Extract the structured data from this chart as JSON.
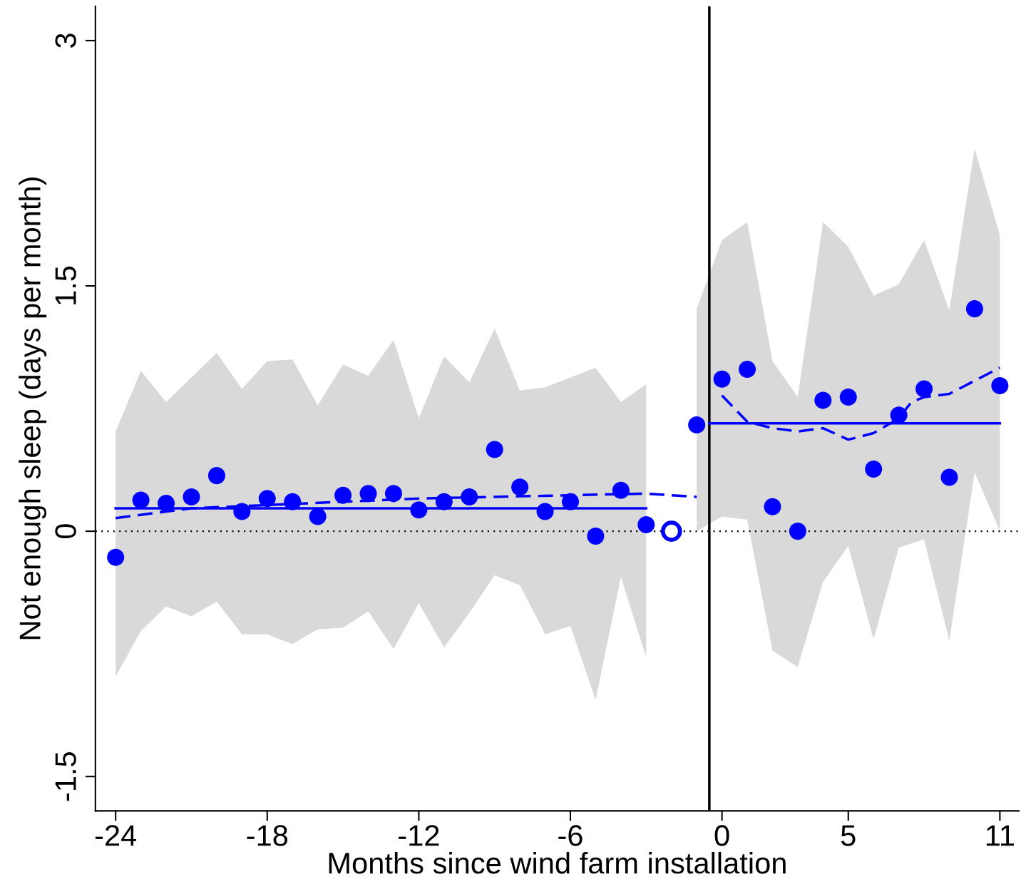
{
  "chart_data": {
    "type": "scatter",
    "xlabel": "Months since wind farm installation",
    "ylabel": "Not enough sleep (days per month)",
    "xlim": [
      -24.8,
      11.75
    ],
    "ylim": [
      -1.71,
      3.21
    ],
    "xticks": [
      -24,
      -18,
      -12,
      -6,
      0,
      5,
      11
    ],
    "yticks": [
      -1.5,
      0,
      1.5,
      3
    ],
    "grid": false,
    "series": [
      {
        "color": "#0000ff",
        "marker": "circle",
        "x": [
          -24,
          -23,
          -22,
          -21,
          -20,
          -19,
          -18,
          -17,
          -16,
          -15,
          -14,
          -13,
          -12,
          -11,
          -10,
          -9,
          -8,
          -7,
          -6,
          -5,
          -4,
          -3
        ],
        "values": [
          -0.16,
          0.19,
          0.17,
          0.21,
          0.34,
          0.12,
          0.2,
          0.18,
          0.09,
          0.22,
          0.23,
          0.23,
          0.13,
          0.18,
          0.21,
          0.5,
          0.27,
          0.12,
          0.18,
          -0.03,
          0.25,
          0.04
        ],
        "upper": [
          0.61,
          0.98,
          0.79,
          0.94,
          1.09,
          0.87,
          1.04,
          1.05,
          0.77,
          1.02,
          0.95,
          1.17,
          0.69,
          1.07,
          0.91,
          1.24,
          0.86,
          0.88,
          0.94,
          1.0,
          0.79,
          0.9
        ],
        "lower": [
          -0.89,
          -0.61,
          -0.46,
          -0.52,
          -0.43,
          -0.63,
          -0.63,
          -0.69,
          -0.6,
          -0.59,
          -0.49,
          -0.72,
          -0.44,
          -0.71,
          -0.5,
          -0.27,
          -0.33,
          -0.63,
          -0.58,
          -1.03,
          -0.28,
          -0.77
        ]
      },
      {
        "color": "#0000ff",
        "marker": "circle",
        "x": [
          -1,
          0,
          1,
          2,
          3,
          4,
          5,
          6,
          7,
          8,
          9,
          10,
          11
        ],
        "values": [
          0.65,
          0.93,
          0.99,
          0.15,
          0.0,
          0.8,
          0.82,
          0.38,
          0.71,
          0.87,
          0.33,
          1.36,
          0.89
        ],
        "upper": [
          1.36,
          1.78,
          1.89,
          1.04,
          0.82,
          1.89,
          1.74,
          1.44,
          1.51,
          1.78,
          1.35,
          2.34,
          1.81
        ],
        "lower": [
          0.0,
          0.09,
          0.07,
          -0.73,
          -0.83,
          -0.31,
          -0.09,
          -0.66,
          -0.1,
          -0.05,
          -0.67,
          0.36,
          0.0
        ]
      },
      {
        "color": "#0000ff",
        "marker": "circle",
        "colors": [
          "#ffffff"
        ],
        "x": [
          -2
        ],
        "values": [
          0
        ]
      },
      {
        "type": "line",
        "color": "#0000ff",
        "line_style": "solid",
        "x": [
          -24,
          -3
        ],
        "values": [
          0.14,
          0.14
        ]
      },
      {
        "type": "line",
        "color": "#0000ff",
        "line_style": "solid",
        "x": [
          -0.5,
          11
        ],
        "values": [
          0.66,
          0.66
        ]
      },
      {
        "type": "line",
        "color": "#0000ff",
        "line_style": "dashed",
        "x": [
          -24,
          -21,
          -18,
          -15,
          -12,
          -9,
          -6,
          -3,
          -1
        ],
        "values": [
          0.08,
          0.14,
          0.16,
          0.18,
          0.2,
          0.21,
          0.22,
          0.23,
          0.21
        ]
      },
      {
        "type": "line",
        "color": "#0000ff",
        "line_style": "dashed",
        "x": [
          0,
          1,
          2,
          3,
          4,
          5,
          6,
          7,
          7.5,
          8,
          9,
          10,
          11
        ],
        "values": [
          0.83,
          0.67,
          0.63,
          0.61,
          0.63,
          0.56,
          0.6,
          0.69,
          0.79,
          0.82,
          0.84,
          0.92,
          1.0
        ]
      }
    ],
    "ref_lines": [
      {
        "axis": "y",
        "value": 0,
        "color": "#000000",
        "line_style": "dotted"
      },
      {
        "axis": "x",
        "value": -0.5,
        "color": "#000000",
        "line_style": "solid"
      }
    ]
  }
}
